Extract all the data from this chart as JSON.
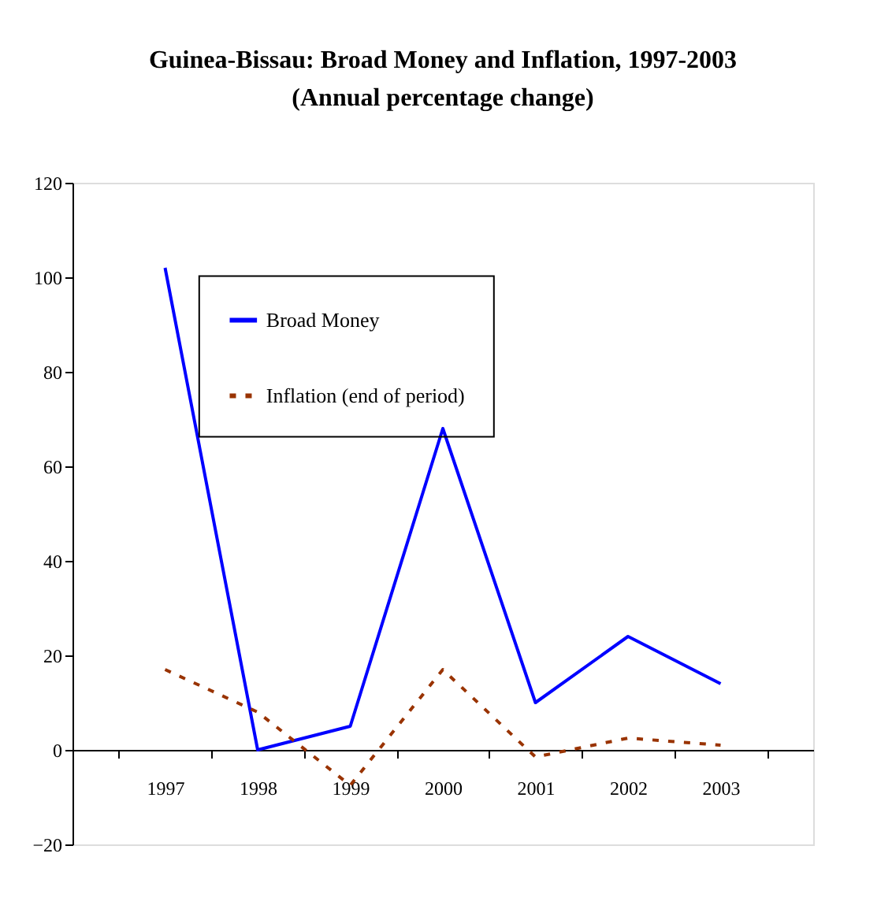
{
  "chart_data": {
    "type": "line",
    "title": "Guinea-Bissau: Broad Money and Inflation, 1997-2003",
    "subtitle": "(Annual percentage change)",
    "categories": [
      "1997",
      "1998",
      "1999",
      "2000",
      "2001",
      "2002",
      "2003"
    ],
    "series": [
      {
        "name": "Broad Money",
        "color": "#0000ff",
        "line_style": "solid",
        "values": [
          102,
          0,
          5,
          68,
          10,
          24,
          14
        ]
      },
      {
        "name": "Inflation (end of period)",
        "color": "#993300",
        "line_style": "dotted",
        "values": [
          17,
          8,
          -7.5,
          17,
          -1.5,
          2.5,
          1
        ]
      }
    ],
    "ylim": [
      -20,
      120
    ],
    "yticks": [
      -20,
      0,
      20,
      40,
      60,
      80,
      100,
      120
    ],
    "grid": false,
    "legend": "top left",
    "marker": "none"
  }
}
